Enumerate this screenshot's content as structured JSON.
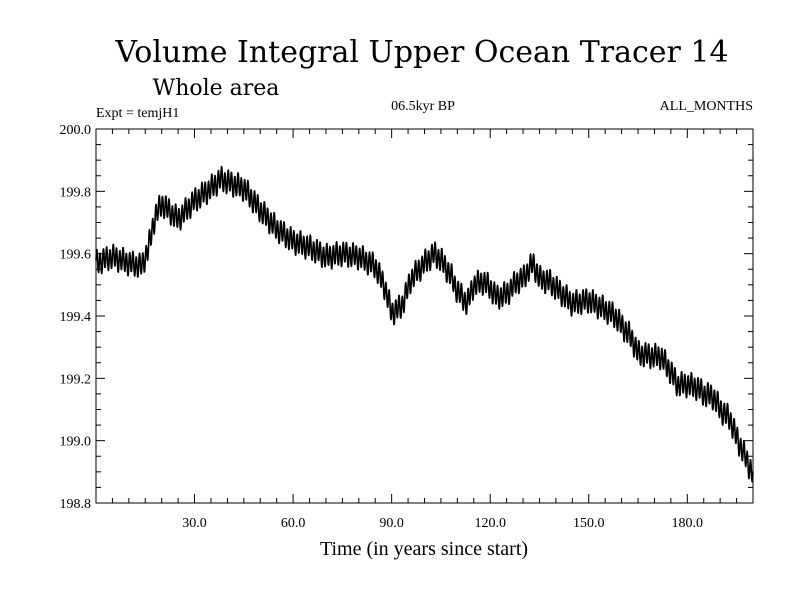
{
  "chart_data": {
    "type": "line",
    "title": "Volume Integral Upper Ocean Tracer 14",
    "subtitle": "Whole area",
    "left_annotation": "Expt = temjH1",
    "center_annotation": "06.5kyr BP",
    "right_annotation": "ALL_MONTHS",
    "xlabel": "Time (in years since start)",
    "ylabel": "",
    "xlim": [
      0,
      200
    ],
    "ylim": [
      198.8,
      200.0
    ],
    "x_ticks": [
      30,
      60,
      90,
      120,
      150,
      180
    ],
    "x_tick_labels": [
      "30.0",
      "60.0",
      "90.0",
      "120.0",
      "150.0",
      "180.0"
    ],
    "y_ticks": [
      198.8,
      199.0,
      199.2,
      199.4,
      199.6,
      199.8,
      200.0
    ],
    "y_tick_labels": [
      "198.8",
      "199.0",
      "199.2",
      "199.4",
      "199.6",
      "199.8",
      "200.0"
    ],
    "color": "#000000",
    "series": [
      {
        "name": "temjH1",
        "oscillation_amplitude": 0.035,
        "cycles_per_year": 1,
        "x": [
          0,
          5,
          10,
          14,
          16,
          18,
          20,
          25,
          30,
          35,
          38,
          40,
          45,
          50,
          55,
          60,
          65,
          70,
          75,
          80,
          85,
          88,
          90,
          93,
          96,
          100,
          103,
          105,
          108,
          110,
          113,
          115,
          118,
          120,
          122,
          125,
          128,
          130,
          133,
          135,
          138,
          140,
          143,
          145,
          150,
          155,
          158,
          160,
          163,
          165,
          170,
          172,
          175,
          177,
          180,
          183,
          185,
          188,
          190,
          193,
          195,
          198,
          200
        ],
        "values": [
          199.57,
          199.59,
          199.57,
          199.56,
          199.62,
          199.72,
          199.76,
          199.71,
          199.77,
          199.81,
          199.84,
          199.83,
          199.81,
          199.74,
          199.68,
          199.64,
          199.62,
          199.59,
          199.6,
          199.59,
          199.56,
          199.49,
          199.41,
          199.43,
          199.52,
          199.57,
          199.6,
          199.58,
          199.53,
          199.48,
          199.44,
          199.5,
          199.51,
          199.49,
          199.46,
          199.47,
          199.51,
          199.52,
          199.57,
          199.52,
          199.51,
          199.49,
          199.46,
          199.44,
          199.45,
          199.42,
          199.4,
          199.37,
          199.33,
          199.28,
          199.27,
          199.27,
          199.22,
          199.18,
          199.18,
          199.17,
          199.15,
          199.14,
          199.1,
          199.07,
          199.01,
          198.94,
          198.89
        ]
      }
    ]
  }
}
